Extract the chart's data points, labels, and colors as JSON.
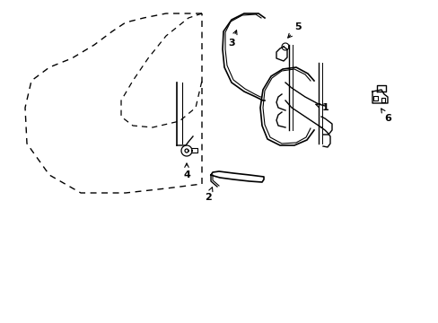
{
  "background_color": "#ffffff",
  "line_color": "#000000",
  "figsize": [
    4.89,
    3.6
  ],
  "dpi": 100,
  "xlim": [
    0,
    489
  ],
  "ylim": [
    0,
    360
  ]
}
